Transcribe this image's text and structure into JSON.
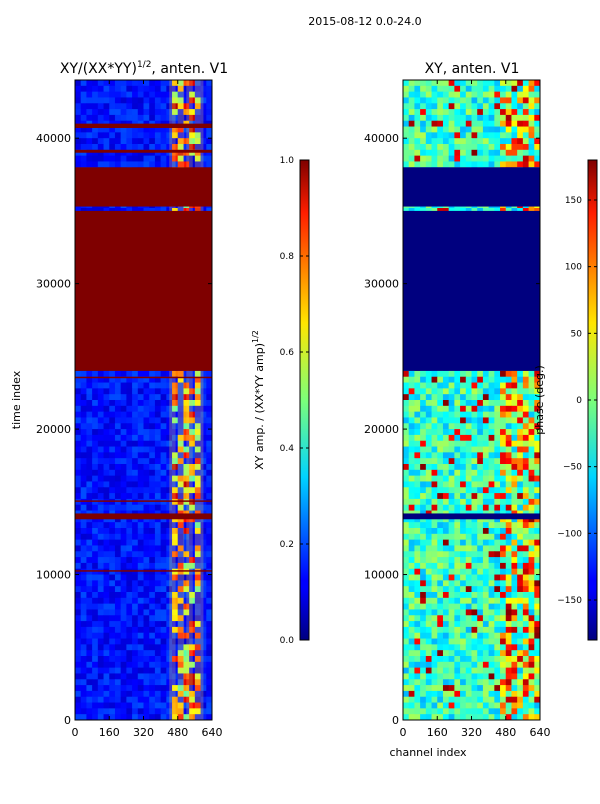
{
  "figure": {
    "suptitle": "2015-08-12 0.0-24.0"
  },
  "chart_data": [
    {
      "type": "heatmap",
      "title": "XY/(XX*YY)",
      "title_sup": "1/2",
      "title_suffix": ", anten. V1",
      "xlabel": "",
      "ylabel": "time index",
      "xlim": [
        0,
        640
      ],
      "ylim": [
        0,
        44000
      ],
      "xticks": [
        0,
        160,
        320,
        480,
        640
      ],
      "yticks": [
        0,
        10000,
        20000,
        30000,
        40000
      ],
      "colormap": "jet",
      "colorbar": {
        "label": "XY amp. / (XX*YY amp)",
        "label_sup": "1/2",
        "range": [
          0.0,
          1.0
        ],
        "ticks": [
          "0.0",
          "0.2",
          "0.4",
          "0.6",
          "0.8",
          "1.0"
        ],
        "tick_values": [
          0.0,
          0.2,
          0.4,
          0.6,
          0.8,
          1.0
        ]
      },
      "saturated_time_bands": [
        [
          24000,
          35000
        ],
        [
          35300,
          38000
        ],
        [
          13800,
          14200
        ],
        [
          39000,
          39200
        ],
        [
          40700,
          41000
        ],
        [
          23500,
          23600
        ],
        [
          15000,
          15100
        ],
        [
          10200,
          10300
        ]
      ],
      "bright_channel_ranges": [
        [
          440,
          470
        ],
        [
          480,
          510
        ],
        [
          520,
          550
        ],
        [
          560,
          600
        ]
      ]
    },
    {
      "type": "heatmap",
      "title": "XY, anten. V1",
      "xlabel": "channel index",
      "ylabel": "",
      "xlim": [
        0,
        640
      ],
      "ylim": [
        0,
        44000
      ],
      "xticks": [
        0,
        160,
        320,
        480,
        640
      ],
      "yticks": [
        0,
        10000,
        20000,
        30000,
        40000
      ],
      "colormap": "jet",
      "colorbar": {
        "label": "phase (deg.)",
        "range": [
          -180,
          180
        ],
        "ticks": [
          "−150",
          "−100",
          "−50",
          "0",
          "50",
          "100",
          "150"
        ],
        "tick_values": [
          -150,
          -100,
          -50,
          0,
          50,
          100,
          150
        ]
      },
      "flagged_time_bands": [
        [
          24000,
          35000
        ],
        [
          35300,
          38000
        ],
        [
          13800,
          14200
        ]
      ]
    }
  ]
}
